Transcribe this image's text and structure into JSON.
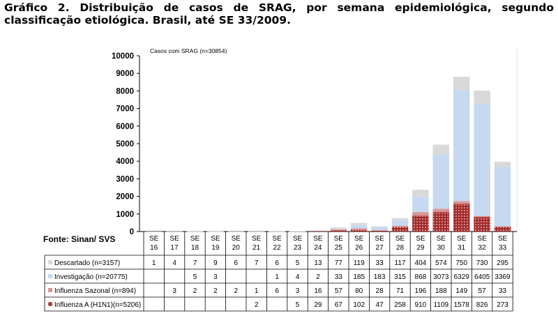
{
  "title": "Gráfico 2. Distribuição de casos de SRAG, por semana epidemiológica, segundo classificação etiológica. Brasil, até SE 33/2009.",
  "source": "Fonte: Sinan/ SVS",
  "colors": {
    "descartado": "#d9d9d9",
    "investigacao": "#c6d9f1",
    "influenza_sazonal": "#d99694",
    "influenza_a": "#a52a2a"
  },
  "chart_data": {
    "type": "bar",
    "stacked": true,
    "title": "Casos com SRAG (n=30854)",
    "ylim": [
      0,
      10000
    ],
    "yticks": [
      "0",
      "1000",
      "2000",
      "3000",
      "4000",
      "5000",
      "6000",
      "7000",
      "8000",
      "9000",
      "10000"
    ],
    "categories": [
      [
        "SE",
        "16"
      ],
      [
        "SE",
        "17"
      ],
      [
        "SE",
        "18"
      ],
      [
        "SE",
        "19"
      ],
      [
        "SE",
        "20"
      ],
      [
        "SE",
        "21"
      ],
      [
        "SE",
        "22"
      ],
      [
        "SE",
        "23"
      ],
      [
        "SE",
        "24"
      ],
      [
        "SE",
        "25"
      ],
      [
        "SE",
        "26"
      ],
      [
        "SE",
        "27"
      ],
      [
        "SE",
        "28"
      ],
      [
        "SE",
        "29"
      ],
      [
        "SE",
        "30"
      ],
      [
        "SE",
        "31"
      ],
      [
        "SE",
        "32"
      ],
      [
        "SE",
        "33"
      ]
    ],
    "legend": "table-rows",
    "series": [
      {
        "name": "Influenza A (H1N1)(n=5206)",
        "values": [
          null,
          null,
          null,
          null,
          null,
          2,
          null,
          5,
          29,
          67,
          102,
          47,
          258,
          910,
          1109,
          1578,
          826,
          273
        ]
      },
      {
        "name": "Influenza Sazonal (n=894)",
        "values": [
          null,
          3,
          2,
          2,
          2,
          1,
          6,
          3,
          16,
          57,
          80,
          28,
          71,
          196,
          188,
          149,
          57,
          33
        ]
      },
      {
        "name": "Investigação (n=20775)",
        "values": [
          null,
          null,
          5,
          3,
          null,
          null,
          1,
          4,
          2,
          33,
          185,
          183,
          315,
          868,
          3073,
          6329,
          6405,
          3369
        ]
      },
      {
        "name": "Descartado (n=3157)",
        "values": [
          1,
          4,
          7,
          9,
          6,
          7,
          6,
          5,
          13,
          77,
          119,
          33,
          117,
          404,
          574,
          750,
          730,
          295
        ]
      }
    ],
    "table_row_order": [
      3,
      2,
      1,
      0
    ]
  }
}
